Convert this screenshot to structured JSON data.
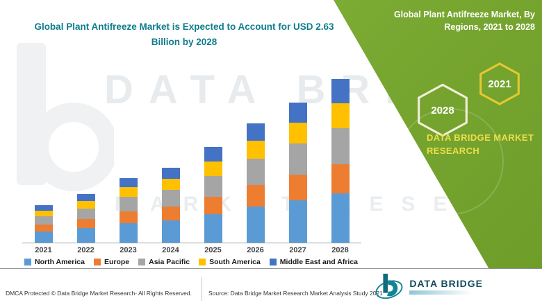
{
  "panel": {
    "title": "Global Plant Antifreeze Market, By Regions, 2021 to 2028",
    "hexagons": [
      {
        "label": "2028",
        "stroke": "#f3eeda"
      },
      {
        "label": "2021",
        "stroke": "#e5c832"
      }
    ],
    "brand": "DATA BRIDGE MARKET RESEARCH",
    "bg_color": "#76a52f",
    "accent_color": "#eede4a"
  },
  "watermark": {
    "line1": "DATA BRIDGE",
    "line2": "MARKET RESEARCH"
  },
  "chart_data": {
    "type": "bar",
    "stacked": true,
    "title": "Global Plant Antifreeze Market is Expected to Account for USD 2.63 Billion by 2028",
    "title_color": "#0e7d8c",
    "unit": "USD Billion",
    "categories": [
      "2021",
      "2022",
      "2023",
      "2024",
      "2025",
      "2026",
      "2027",
      "2028"
    ],
    "series": [
      {
        "name": "North America",
        "color": "#5B9BD5",
        "values": [
          0.18,
          0.23,
          0.31,
          0.36,
          0.46,
          0.58,
          0.68,
          0.79
        ]
      },
      {
        "name": "Europe",
        "color": "#ED7D31",
        "values": [
          0.11,
          0.14,
          0.19,
          0.22,
          0.28,
          0.35,
          0.41,
          0.47
        ]
      },
      {
        "name": "Asia Pacific",
        "color": "#A5A5A5",
        "values": [
          0.13,
          0.17,
          0.23,
          0.27,
          0.34,
          0.42,
          0.5,
          0.58
        ]
      },
      {
        "name": "South America",
        "color": "#FFC000",
        "values": [
          0.09,
          0.12,
          0.16,
          0.18,
          0.23,
          0.29,
          0.34,
          0.4
        ]
      },
      {
        "name": "Middle East and Africa",
        "color": "#4472C4",
        "values": [
          0.09,
          0.11,
          0.15,
          0.18,
          0.23,
          0.28,
          0.32,
          0.39
        ]
      }
    ],
    "totals": [
      0.6,
      0.77,
      1.04,
      1.21,
      1.54,
      1.92,
      2.25,
      2.63
    ],
    "ylim": [
      0,
      2.8
    ],
    "grid": false,
    "legend_position": "bottom"
  },
  "footer": {
    "dmca": "DMCA Protected © Data Bridge Market Research- All Rights Reserved.",
    "source": "Source: Data Bridge Market Research Market Analysis Study 2021",
    "logo_text": "DATA BRIDGE"
  }
}
